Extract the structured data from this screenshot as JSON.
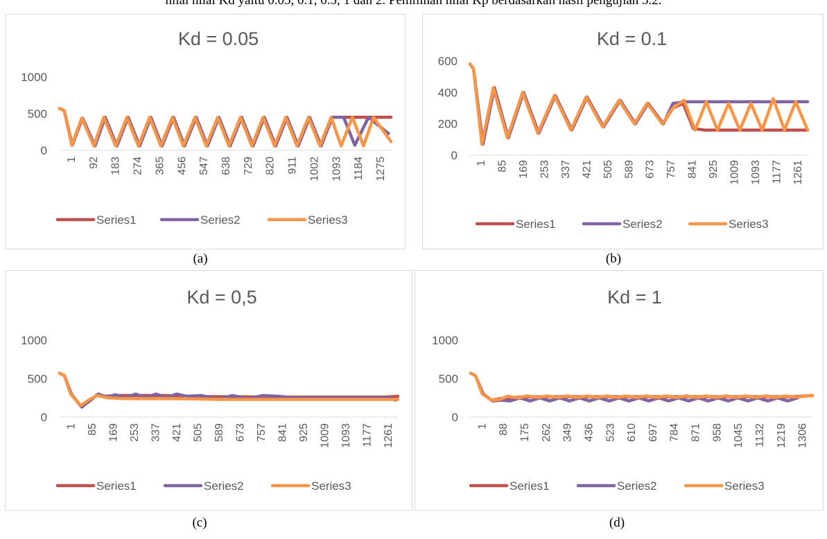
{
  "intro_text": "nilai nilai Kd yaitu 0.05, 0.1, 0.5, 1 dan 2. Pemilihan nilai Kp berdasarkan hasil pengujian 5.2.",
  "colors": {
    "Series1": "#c0504d",
    "Series2": "#8064a2",
    "Series3": "#f79646"
  },
  "chart_data": [
    {
      "type": "line",
      "title": "Kd = 0.05",
      "caption": "(a)",
      "ylim": [
        0,
        1000
      ],
      "yticks": [
        "0",
        "500",
        "1000"
      ],
      "x_tick_labels": [
        "1",
        "92",
        "183",
        "274",
        "365",
        "456",
        "547",
        "638",
        "729",
        "820",
        "911",
        "1002",
        "1093",
        "1184",
        "1275"
      ],
      "xlim": [
        1,
        1330
      ],
      "legend_position": "bottom",
      "series": [
        {
          "name": "Series1",
          "x": [
            1,
            20,
            50,
            91,
            141,
            181,
            229,
            274,
            320,
            365,
            410,
            456,
            500,
            547,
            592,
            638,
            683,
            729,
            775,
            820,
            866,
            911,
            956,
            1002,
            1048,
            1093,
            1125,
            1150,
            1330
          ],
          "y": [
            570,
            540,
            70,
            440,
            60,
            450,
            60,
            450,
            60,
            450,
            60,
            450,
            60,
            450,
            60,
            450,
            60,
            450,
            60,
            450,
            60,
            450,
            60,
            450,
            60,
            450,
            450,
            450,
            450
          ]
        },
        {
          "name": "Series2",
          "x": [
            1,
            20,
            52,
            93,
            143,
            184,
            231,
            276,
            322,
            367,
            412,
            458,
            502,
            549,
            594,
            640,
            685,
            731,
            777,
            822,
            868,
            913,
            958,
            1004,
            1050,
            1095,
            1140,
            1185,
            1240,
            1320
          ],
          "y": [
            570,
            540,
            70,
            440,
            60,
            450,
            60,
            450,
            60,
            450,
            60,
            450,
            60,
            450,
            60,
            450,
            60,
            450,
            60,
            450,
            60,
            450,
            60,
            450,
            60,
            450,
            450,
            70,
            450,
            230
          ]
        },
        {
          "name": "Series3",
          "x": [
            1,
            20,
            50,
            90,
            138,
            178,
            226,
            271,
            317,
            362,
            407,
            453,
            497,
            544,
            589,
            635,
            680,
            726,
            772,
            817,
            863,
            908,
            953,
            999,
            1045,
            1090,
            1130,
            1175,
            1220,
            1260,
            1330
          ],
          "y": [
            570,
            540,
            70,
            440,
            60,
            450,
            60,
            450,
            60,
            450,
            60,
            450,
            60,
            450,
            60,
            450,
            60,
            450,
            60,
            450,
            60,
            450,
            60,
            450,
            60,
            450,
            60,
            450,
            60,
            450,
            120
          ]
        }
      ]
    },
    {
      "type": "line",
      "title": "Kd = 0.1",
      "caption": "(b)",
      "ylim": [
        0,
        600
      ],
      "yticks": [
        "0",
        "200",
        "400",
        "600"
      ],
      "x_tick_labels": [
        "1",
        "85",
        "169",
        "253",
        "337",
        "421",
        "505",
        "589",
        "673",
        "757",
        "841",
        "925",
        "1009",
        "1093",
        "1177",
        "1261"
      ],
      "xlim": [
        1,
        1330
      ],
      "legend_position": "bottom",
      "series": [
        {
          "name": "Series1",
          "x": [
            1,
            15,
            50,
            95,
            150,
            210,
            270,
            335,
            400,
            460,
            525,
            590,
            650,
            700,
            760,
            800,
            840,
            880,
            925,
            1330
          ],
          "y": [
            580,
            550,
            70,
            430,
            110,
            400,
            140,
            380,
            160,
            370,
            180,
            350,
            200,
            330,
            200,
            300,
            330,
            170,
            160,
            160
          ]
        },
        {
          "name": "Series2",
          "x": [
            1,
            15,
            52,
            97,
            152,
            212,
            272,
            337,
            402,
            462,
            527,
            592,
            652,
            702,
            762,
            800,
            850,
            1330
          ],
          "y": [
            580,
            550,
            70,
            430,
            110,
            400,
            140,
            380,
            160,
            370,
            180,
            350,
            200,
            330,
            200,
            330,
            340,
            340
          ]
        },
        {
          "name": "Series3",
          "x": [
            1,
            15,
            48,
            93,
            148,
            208,
            268,
            333,
            398,
            458,
            523,
            588,
            648,
            698,
            758,
            800,
            843,
            887,
            931,
            975,
            1019,
            1063,
            1107,
            1151,
            1195,
            1239,
            1283,
            1330
          ],
          "y": [
            580,
            550,
            70,
            430,
            110,
            400,
            140,
            380,
            160,
            370,
            180,
            350,
            200,
            330,
            200,
            300,
            350,
            160,
            340,
            160,
            330,
            160,
            330,
            160,
            360,
            160,
            340,
            160
          ]
        }
      ]
    },
    {
      "type": "line",
      "title": "Kd = 0,5",
      "caption": "(c)",
      "ylim": [
        0,
        1000
      ],
      "yticks": [
        "0",
        "500",
        "1000"
      ],
      "x_tick_labels": [
        "1",
        "85",
        "169",
        "253",
        "337",
        "421",
        "505",
        "589",
        "673",
        "757",
        "841",
        "925",
        "1009",
        "1093",
        "1177",
        "1261"
      ],
      "xlim": [
        1,
        1330
      ],
      "legend_position": "bottom",
      "series": [
        {
          "name": "Series1",
          "x": [
            1,
            20,
            45,
            85,
            120,
            150,
            180,
            230,
            300,
            400,
            500,
            600,
            700,
            800,
            900,
            1000,
            1100,
            1200,
            1280,
            1330
          ],
          "y": [
            570,
            540,
            300,
            140,
            220,
            290,
            270,
            280,
            280,
            280,
            270,
            265,
            265,
            260,
            260,
            260,
            260,
            260,
            260,
            270
          ]
        },
        {
          "name": "Series2",
          "x": [
            1,
            20,
            47,
            88,
            123,
            153,
            185,
            220,
            260,
            300,
            340,
            380,
            420,
            460,
            500,
            560,
            620,
            680,
            740,
            800,
            860,
            920,
            1000,
            1100,
            1200,
            1300,
            1320
          ],
          "y": [
            570,
            540,
            300,
            130,
            220,
            300,
            260,
            290,
            250,
            300,
            250,
            300,
            250,
            300,
            270,
            280,
            230,
            280,
            240,
            280,
            270,
            250,
            250,
            250,
            250,
            250,
            220
          ]
        },
        {
          "name": "Series3",
          "x": [
            1,
            20,
            44,
            84,
            119,
            150,
            190,
            260,
            350,
            450,
            550,
            620,
            700,
            800,
            900,
            1000,
            1100,
            1200,
            1330
          ],
          "y": [
            570,
            540,
            300,
            150,
            230,
            280,
            250,
            240,
            240,
            240,
            235,
            230,
            230,
            230,
            230,
            230,
            230,
            230,
            230
          ]
        }
      ]
    },
    {
      "type": "line",
      "title": "Kd = 1",
      "caption": "(d)",
      "ylim": [
        0,
        1000
      ],
      "yticks": [
        "0",
        "500",
        "1000"
      ],
      "x_tick_labels": [
        "1",
        "88",
        "175",
        "262",
        "349",
        "436",
        "523",
        "610",
        "697",
        "784",
        "871",
        "958",
        "1045",
        "1132",
        "1219",
        "1306"
      ],
      "xlim": [
        1,
        1380
      ],
      "legend_position": "bottom",
      "series": [
        {
          "name": "Series1",
          "x": [
            1,
            20,
            50,
            85,
            120,
            200,
            300,
            400,
            500,
            600,
            700,
            800,
            900,
            1000,
            1100,
            1200,
            1300,
            1380
          ],
          "y": [
            570,
            540,
            300,
            220,
            240,
            260,
            265,
            265,
            265,
            265,
            265,
            265,
            265,
            265,
            265,
            265,
            265,
            280
          ]
        },
        {
          "name": "Series2",
          "x": [
            1,
            20,
            52,
            88,
            125,
            160,
            200,
            240,
            280,
            320,
            360,
            400,
            440,
            480,
            520,
            560,
            600,
            640,
            680,
            720,
            760,
            800,
            840,
            880,
            920,
            960,
            1000,
            1040,
            1080,
            1120,
            1160,
            1200,
            1240,
            1280,
            1320
          ],
          "y": [
            570,
            540,
            300,
            210,
            220,
            210,
            250,
            210,
            250,
            210,
            250,
            210,
            250,
            210,
            250,
            210,
            250,
            210,
            250,
            210,
            250,
            210,
            250,
            210,
            250,
            210,
            250,
            210,
            250,
            210,
            250,
            210,
            250,
            210,
            250
          ]
        },
        {
          "name": "Series3",
          "x": [
            1,
            20,
            48,
            84,
            118,
            150,
            190,
            230,
            270,
            310,
            350,
            390,
            430,
            470,
            510,
            550,
            590,
            630,
            670,
            710,
            750,
            790,
            830,
            870,
            910,
            950,
            990,
            1030,
            1070,
            1110,
            1150,
            1190,
            1230,
            1270,
            1310,
            1380
          ],
          "y": [
            570,
            540,
            300,
            220,
            230,
            270,
            250,
            275,
            255,
            275,
            255,
            275,
            255,
            275,
            255,
            275,
            255,
            275,
            255,
            275,
            255,
            275,
            255,
            275,
            255,
            275,
            255,
            275,
            255,
            275,
            255,
            275,
            255,
            275,
            260,
            280
          ]
        }
      ]
    }
  ]
}
